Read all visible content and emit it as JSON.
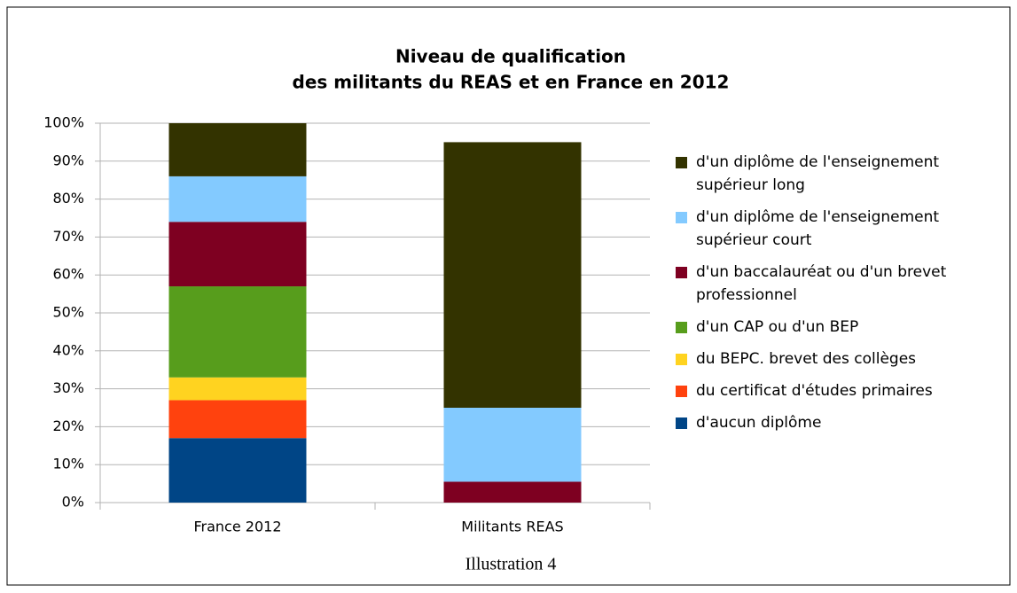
{
  "chart_data": {
    "type": "stacked_bar",
    "title": [
      "Niveau de qualification",
      "des militants du REAS et en France en 2012"
    ],
    "categories": [
      "France 2012",
      "Militants REAS"
    ],
    "series": [
      {
        "name": "d'aucun diplôme",
        "color": "#004586",
        "values": [
          17,
          0
        ]
      },
      {
        "name": "du certificat d'études primaires",
        "color": "#ff420e",
        "values": [
          10,
          0
        ]
      },
      {
        "name": "du BEPC. brevet des collèges",
        "color": "#ffd320",
        "values": [
          6,
          0
        ]
      },
      {
        "name": "d'un CAP ou d'un BEP",
        "color": "#579d1c",
        "values": [
          24,
          0
        ]
      },
      {
        "name": "d'un baccalauréat ou d'un brevet professionnel",
        "color": "#7e0021",
        "values": [
          17,
          5.5
        ]
      },
      {
        "name": "d'un diplôme de l'enseignement supérieur court",
        "color": "#83caff",
        "values": [
          12,
          19.5
        ]
      },
      {
        "name": "d'un diplôme de l'enseignement supérieur long",
        "color": "#333300",
        "values": [
          14,
          70
        ]
      }
    ],
    "ylim": [
      0,
      100
    ],
    "yticks": [
      {
        "value": 0,
        "label": "0%"
      },
      {
        "value": 10,
        "label": "10%"
      },
      {
        "value": 20,
        "label": "20%"
      },
      {
        "value": 30,
        "label": "30%"
      },
      {
        "value": 40,
        "label": "40%"
      },
      {
        "value": 50,
        "label": "50%"
      },
      {
        "value": 60,
        "label": "60%"
      },
      {
        "value": 70,
        "label": "70%"
      },
      {
        "value": 80,
        "label": "80%"
      },
      {
        "value": 90,
        "label": "90%"
      },
      {
        "value": 100,
        "label": "100%"
      }
    ],
    "grid": true,
    "legend": "right",
    "caption": "Illustration 4"
  }
}
